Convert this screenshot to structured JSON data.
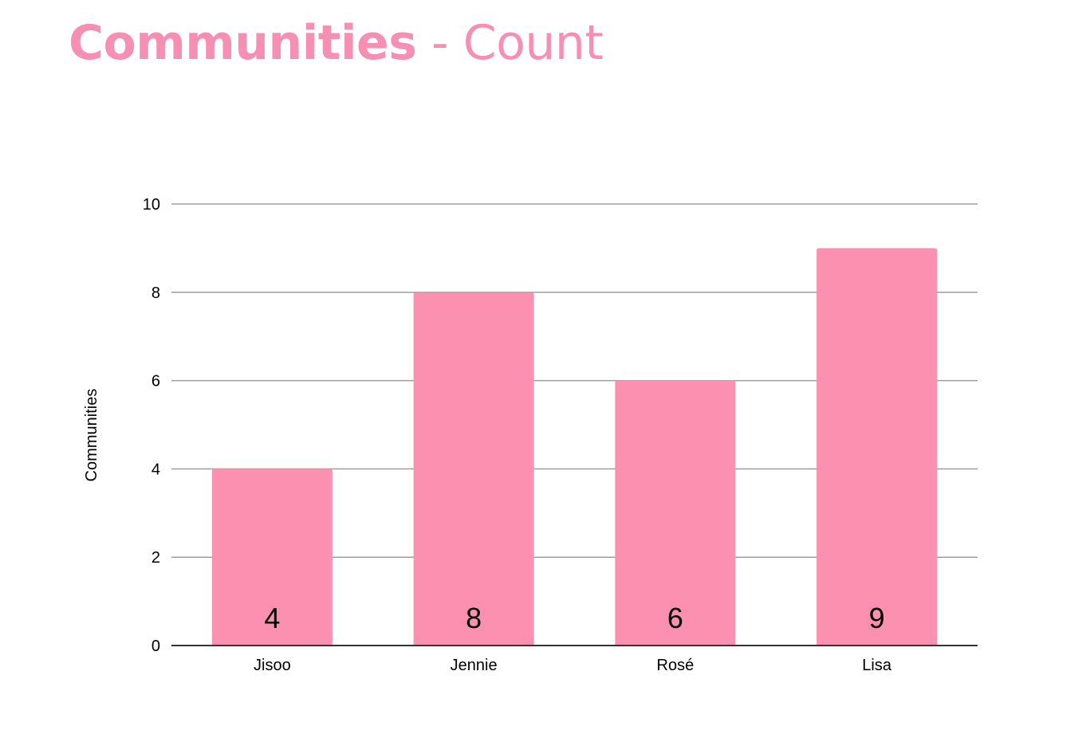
{
  "header": {
    "title_strong": "Communities",
    "title_rest": " - Count"
  },
  "colors": {
    "accent": "#f78fb3",
    "bar": "#fb90b1",
    "grid": "#9e9e9e",
    "axis": "#333333"
  },
  "chart_data": {
    "type": "bar",
    "categories": [
      "Jisoo",
      "Jennie",
      "Rosé",
      "Lisa"
    ],
    "values": [
      4,
      8,
      6,
      9
    ],
    "title": "",
    "xlabel": "",
    "ylabel": "Communities",
    "ylim": [
      0,
      10
    ],
    "yticks": [
      0,
      2,
      4,
      6,
      8,
      10
    ],
    "grid": true,
    "legend": "none",
    "data_labels": [
      "4",
      "8",
      "6",
      "9"
    ]
  }
}
